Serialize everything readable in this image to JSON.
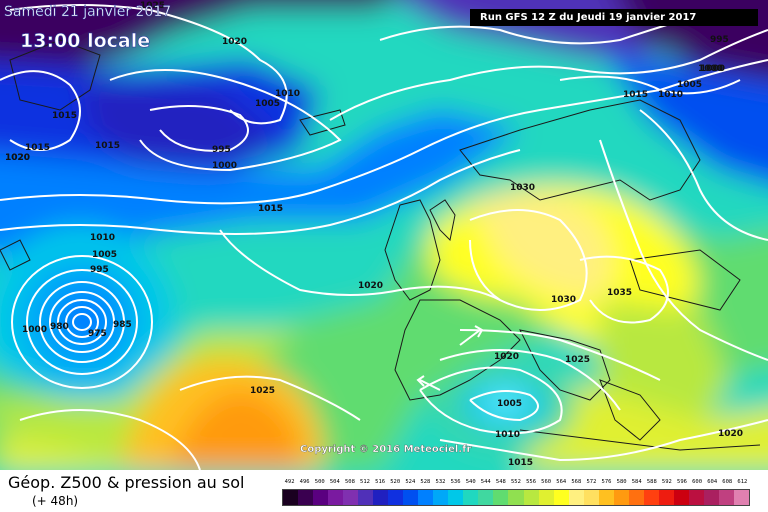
{
  "header": {
    "date": "Samedi 21 janvier 2017",
    "time": "13:00 locale",
    "run": "Run GFS 12 Z du Jeudi 19 janvier 2017"
  },
  "footer": {
    "title": "Géop. Z500 & pression au sol",
    "subtitle": "(+ 48h)"
  },
  "copyright": "Copyright © 2016 Meteociel.fr",
  "scale": {
    "labels": [
      "492",
      "496",
      "500",
      "504",
      "508",
      "512",
      "516",
      "520",
      "524",
      "528",
      "532",
      "536",
      "540",
      "544",
      "548",
      "552",
      "556",
      "560",
      "564",
      "568",
      "572",
      "576",
      "580",
      "584",
      "588",
      "592",
      "596",
      "600",
      "604",
      "608",
      "612"
    ],
    "colors": [
      "#1a0020",
      "#3a0050",
      "#5a0080",
      "#7a1aa0",
      "#8030b0",
      "#5030b8",
      "#2020c0",
      "#1030e0",
      "#0050f0",
      "#0080ff",
      "#00a8f8",
      "#00c8e8",
      "#20d8c0",
      "#40d8a0",
      "#60dc70",
      "#90e050",
      "#b8e840",
      "#e0f030",
      "#ffff20",
      "#fff080",
      "#ffe060",
      "#ffc020",
      "#ff9a10",
      "#ff7010",
      "#ff4010",
      "#ee1c10",
      "#cc0010",
      "#bb1040",
      "#aa2060",
      "#c04080",
      "#e080b0"
    ]
  },
  "isobars": [
    "1025",
    "1020",
    "1015",
    "1015",
    "1020",
    "1015",
    "1005",
    "1010",
    "995",
    "1000",
    "1015",
    "1010",
    "1005",
    "995",
    "1000",
    "1015",
    "1010",
    "1005",
    "1000",
    "995",
    "1030",
    "1035",
    "1030",
    "1020",
    "1025",
    "1015",
    "1005",
    "1010",
    "1015",
    "1020",
    "1025",
    "1020",
    "1000",
    "980",
    "975",
    "985",
    "1020"
  ]
}
